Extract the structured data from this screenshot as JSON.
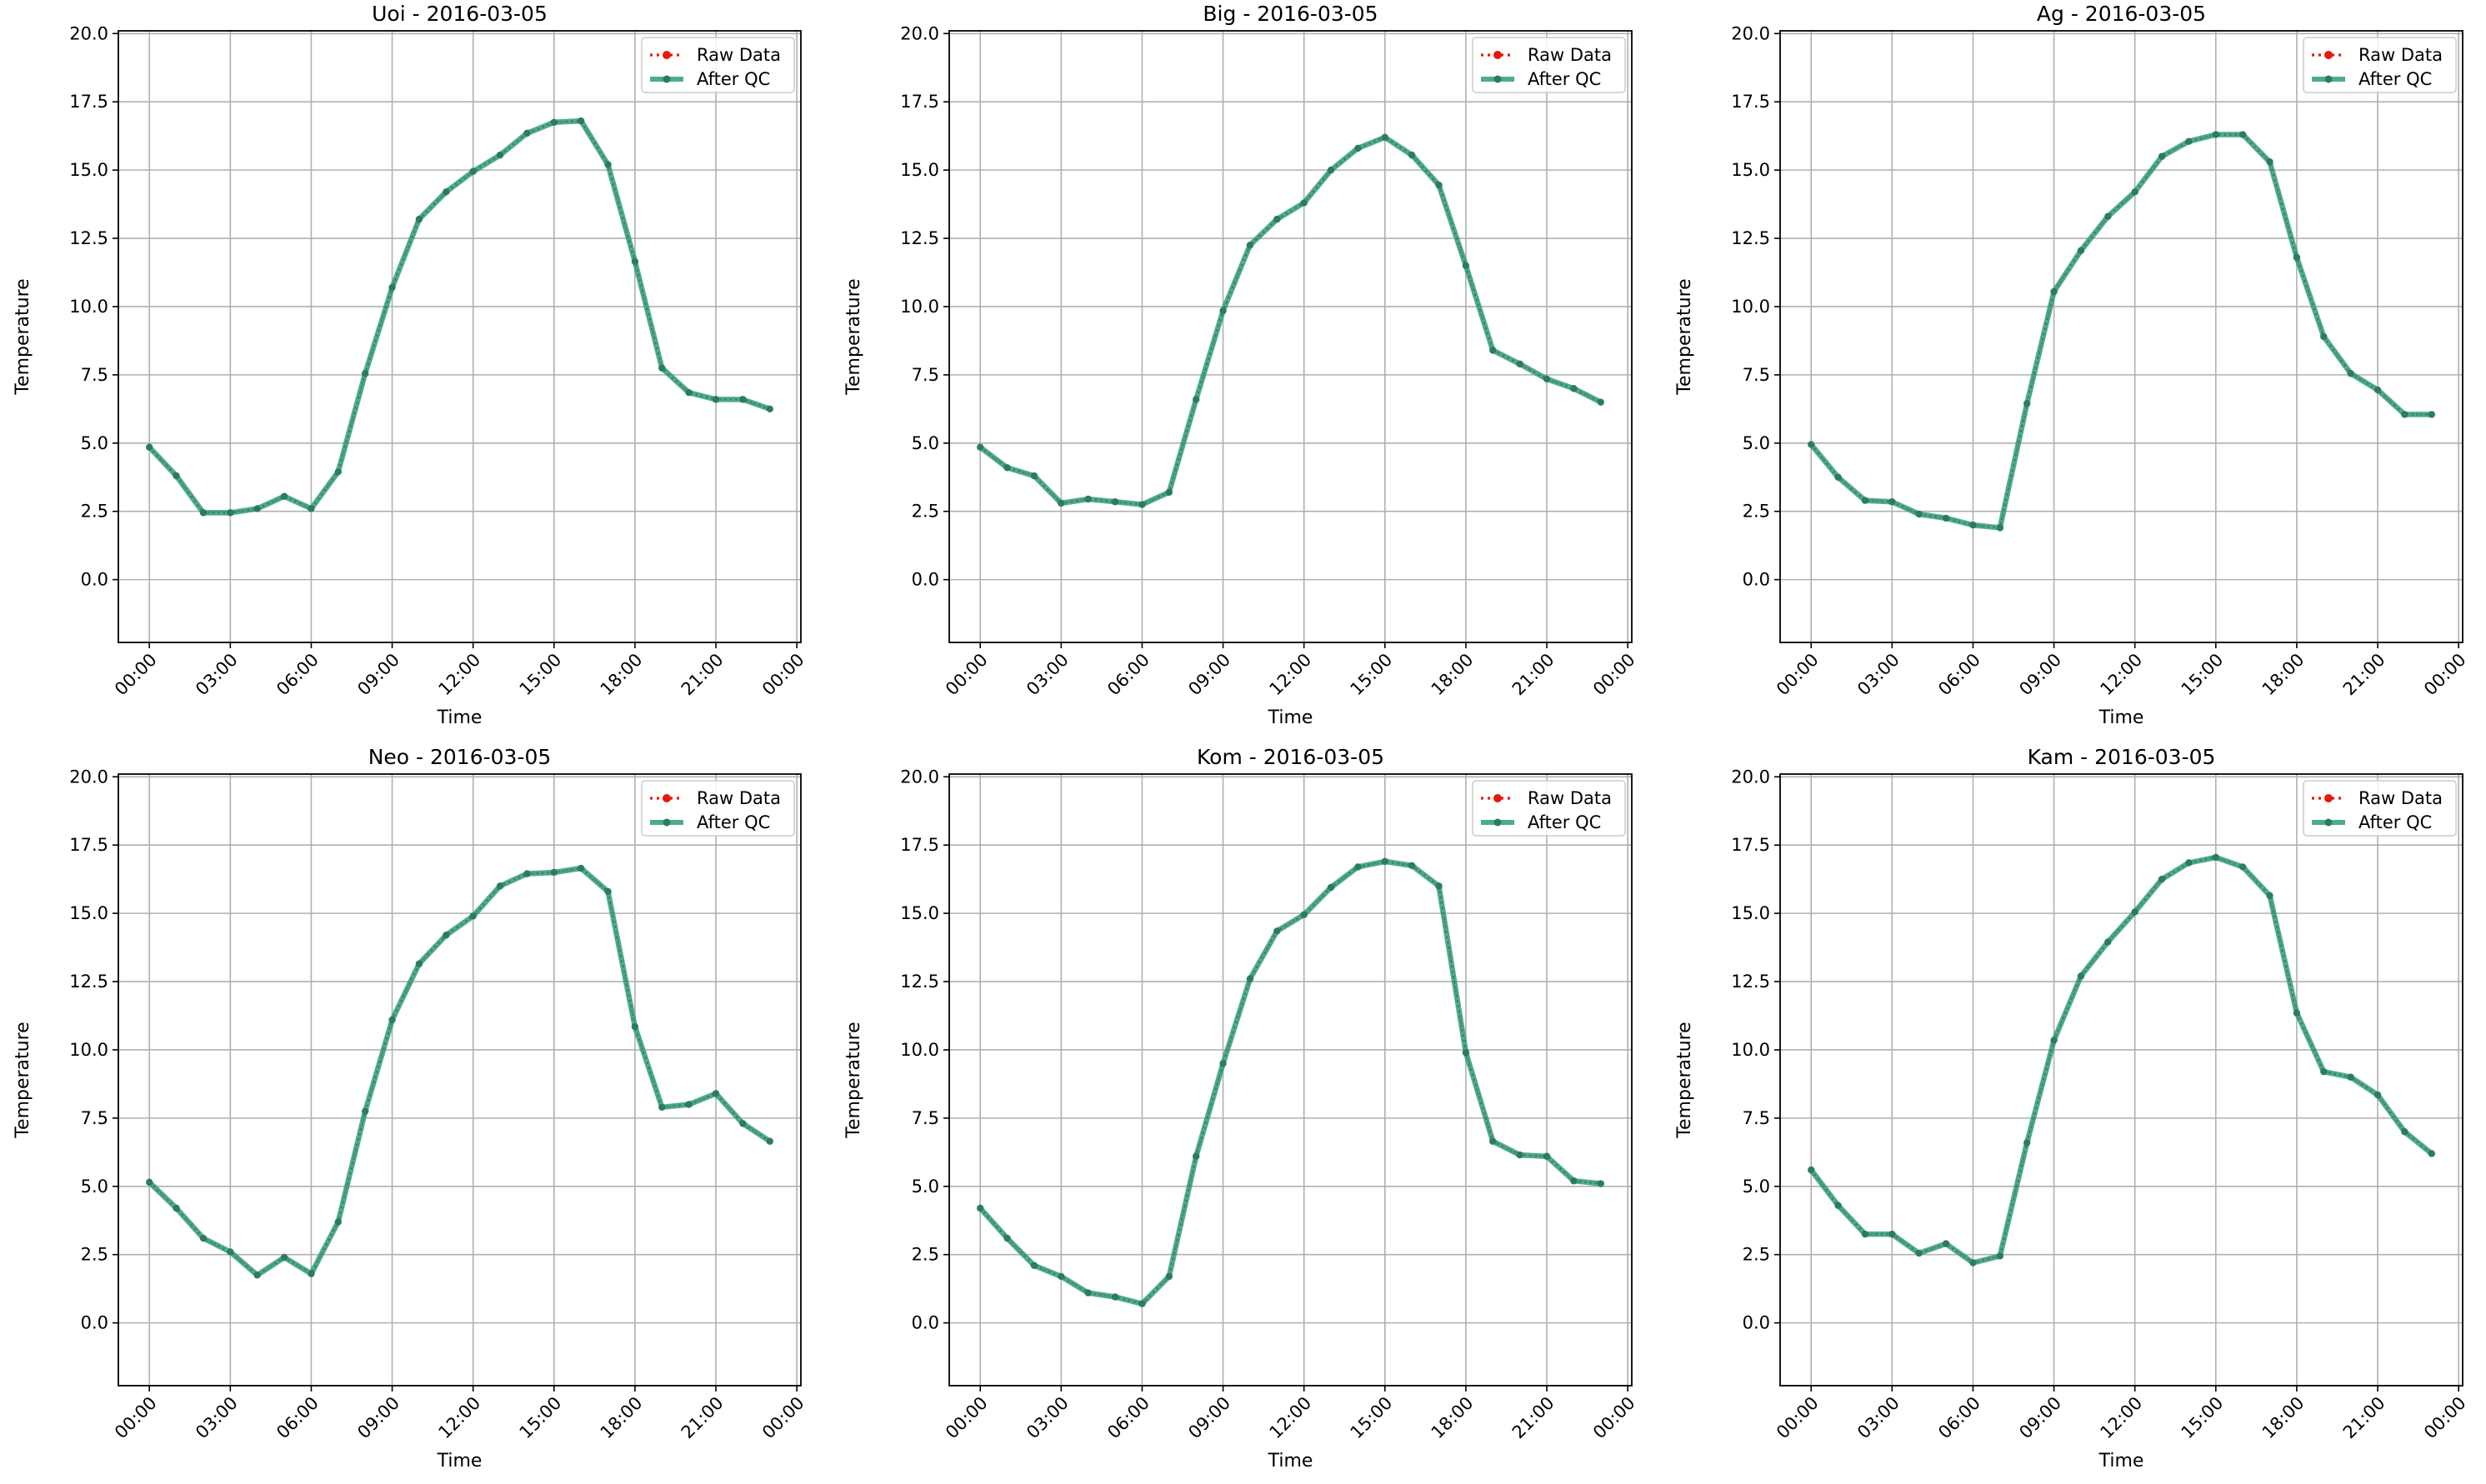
{
  "colors": {
    "raw": "#e8180c",
    "qc": "#2e9d78",
    "qc_point": "#2a7d62",
    "grid": "#b0b0b0"
  },
  "legend_placement": "top-right",
  "grid": true,
  "chart_data": [
    {
      "type": "line",
      "title": "Uoi - 2016-03-05",
      "xlabel": "Time",
      "ylabel": "Temperature",
      "x_hours": [
        0,
        1,
        2,
        3,
        4,
        5,
        6,
        7,
        8,
        9,
        10,
        11,
        12,
        13,
        14,
        15,
        16,
        17,
        18,
        19,
        20,
        21,
        22,
        23
      ],
      "xticks": [
        "00:00",
        "03:00",
        "06:00",
        "09:00",
        "12:00",
        "15:00",
        "18:00",
        "21:00",
        "00:00"
      ],
      "yticks": [
        "0.0",
        "2.5",
        "5.0",
        "7.5",
        "10.0",
        "12.5",
        "15.0",
        "17.5",
        "20.0"
      ],
      "ylim": [
        -2.3,
        20.1
      ],
      "series": [
        {
          "name": "Raw Data",
          "values": [
            4.85,
            3.8,
            2.45,
            2.45,
            2.6,
            3.05,
            2.6,
            3.95,
            7.55,
            10.7,
            13.2,
            14.2,
            14.95,
            15.55,
            16.35,
            16.75,
            16.8,
            15.2,
            11.65,
            7.75,
            6.85,
            6.6,
            6.6,
            6.25
          ]
        },
        {
          "name": "After QC",
          "values": [
            4.85,
            3.8,
            2.45,
            2.45,
            2.6,
            3.05,
            2.6,
            3.95,
            7.55,
            10.7,
            13.2,
            14.2,
            14.95,
            15.55,
            16.35,
            16.75,
            16.8,
            15.2,
            11.65,
            7.75,
            6.85,
            6.6,
            6.6,
            6.25
          ]
        }
      ]
    },
    {
      "type": "line",
      "title": "Big - 2016-03-05",
      "xlabel": "Time",
      "ylabel": "Temperature",
      "x_hours": [
        0,
        1,
        2,
        3,
        4,
        5,
        6,
        7,
        8,
        9,
        10,
        11,
        12,
        13,
        14,
        15,
        16,
        17,
        18,
        19,
        20,
        21,
        22,
        23
      ],
      "xticks": [
        "00:00",
        "03:00",
        "06:00",
        "09:00",
        "12:00",
        "15:00",
        "18:00",
        "21:00",
        "00:00"
      ],
      "yticks": [
        "0.0",
        "2.5",
        "5.0",
        "7.5",
        "10.0",
        "12.5",
        "15.0",
        "17.5",
        "20.0"
      ],
      "ylim": [
        -2.3,
        20.1
      ],
      "series": [
        {
          "name": "Raw Data",
          "values": [
            4.85,
            4.1,
            3.8,
            2.8,
            2.95,
            2.85,
            2.75,
            3.2,
            6.6,
            9.85,
            12.25,
            13.2,
            13.8,
            15.0,
            15.8,
            16.2,
            15.55,
            14.45,
            11.5,
            8.4,
            7.9,
            7.35,
            7.0,
            6.5
          ]
        },
        {
          "name": "After QC",
          "values": [
            4.85,
            4.1,
            3.8,
            2.8,
            2.95,
            2.85,
            2.75,
            3.2,
            6.6,
            9.85,
            12.25,
            13.2,
            13.8,
            15.0,
            15.8,
            16.2,
            15.55,
            14.45,
            11.5,
            8.4,
            7.9,
            7.35,
            7.0,
            6.5
          ]
        }
      ]
    },
    {
      "type": "line",
      "title": "Ag - 2016-03-05",
      "xlabel": "Time",
      "ylabel": "Temperature",
      "x_hours": [
        0,
        1,
        2,
        3,
        4,
        5,
        6,
        7,
        8,
        9,
        10,
        11,
        12,
        13,
        14,
        15,
        16,
        17,
        18,
        19,
        20,
        21,
        22,
        23
      ],
      "xticks": [
        "00:00",
        "03:00",
        "06:00",
        "09:00",
        "12:00",
        "15:00",
        "18:00",
        "21:00",
        "00:00"
      ],
      "yticks": [
        "0.0",
        "2.5",
        "5.0",
        "7.5",
        "10.0",
        "12.5",
        "15.0",
        "17.5",
        "20.0"
      ],
      "ylim": [
        -2.3,
        20.1
      ],
      "series": [
        {
          "name": "Raw Data",
          "values": [
            4.95,
            3.75,
            2.9,
            2.85,
            2.4,
            2.25,
            2.0,
            1.9,
            6.45,
            10.55,
            12.05,
            13.3,
            14.2,
            15.5,
            16.05,
            16.3,
            16.3,
            15.3,
            11.8,
            8.9,
            7.55,
            6.95,
            6.05,
            6.05
          ]
        },
        {
          "name": "After QC",
          "values": [
            4.95,
            3.75,
            2.9,
            2.85,
            2.4,
            2.25,
            2.0,
            1.9,
            6.45,
            10.55,
            12.05,
            13.3,
            14.2,
            15.5,
            16.05,
            16.3,
            16.3,
            15.3,
            11.8,
            8.9,
            7.55,
            6.95,
            6.05,
            6.05
          ]
        }
      ]
    },
    {
      "type": "line",
      "title": "Neo - 2016-03-05",
      "xlabel": "Time",
      "ylabel": "Temperature",
      "x_hours": [
        0,
        1,
        2,
        3,
        4,
        5,
        6,
        7,
        8,
        9,
        10,
        11,
        12,
        13,
        14,
        15,
        16,
        17,
        18,
        19,
        20,
        21,
        22,
        23
      ],
      "xticks": [
        "00:00",
        "03:00",
        "06:00",
        "09:00",
        "12:00",
        "15:00",
        "18:00",
        "21:00",
        "00:00"
      ],
      "yticks": [
        "0.0",
        "2.5",
        "5.0",
        "7.5",
        "10.0",
        "12.5",
        "15.0",
        "17.5",
        "20.0"
      ],
      "ylim": [
        -2.3,
        20.1
      ],
      "series": [
        {
          "name": "Raw Data",
          "values": [
            5.15,
            4.2,
            3.1,
            2.6,
            1.75,
            2.4,
            1.8,
            3.7,
            7.75,
            11.1,
            13.15,
            14.2,
            14.9,
            16.0,
            16.45,
            16.5,
            16.65,
            15.8,
            10.85,
            7.9,
            8.0,
            8.4,
            7.3,
            6.65
          ]
        },
        {
          "name": "After QC",
          "values": [
            5.15,
            4.2,
            3.1,
            2.6,
            1.75,
            2.4,
            1.8,
            3.7,
            7.75,
            11.1,
            13.15,
            14.2,
            14.9,
            16.0,
            16.45,
            16.5,
            16.65,
            15.8,
            10.85,
            7.9,
            8.0,
            8.4,
            7.3,
            6.65
          ]
        }
      ]
    },
    {
      "type": "line",
      "title": "Kom - 2016-03-05",
      "xlabel": "Time",
      "ylabel": "Temperature",
      "x_hours": [
        0,
        1,
        2,
        3,
        4,
        5,
        6,
        7,
        8,
        9,
        10,
        11,
        12,
        13,
        14,
        15,
        16,
        17,
        18,
        19,
        20,
        21,
        22,
        23
      ],
      "xticks": [
        "00:00",
        "03:00",
        "06:00",
        "09:00",
        "12:00",
        "15:00",
        "18:00",
        "21:00",
        "00:00"
      ],
      "yticks": [
        "0.0",
        "2.5",
        "5.0",
        "7.5",
        "10.0",
        "12.5",
        "15.0",
        "17.5",
        "20.0"
      ],
      "ylim": [
        -2.3,
        20.1
      ],
      "series": [
        {
          "name": "Raw Data",
          "values": [
            4.2,
            3.1,
            2.1,
            1.7,
            1.1,
            0.95,
            0.7,
            1.7,
            6.1,
            9.5,
            12.6,
            14.35,
            14.95,
            15.95,
            16.7,
            16.9,
            16.75,
            16.0,
            9.9,
            6.65,
            6.15,
            6.1,
            5.2,
            5.1
          ]
        },
        {
          "name": "After QC",
          "values": [
            4.2,
            3.1,
            2.1,
            1.7,
            1.1,
            0.95,
            0.7,
            1.7,
            6.1,
            9.5,
            12.6,
            14.35,
            14.95,
            15.95,
            16.7,
            16.9,
            16.75,
            16.0,
            9.9,
            6.65,
            6.15,
            6.1,
            5.2,
            5.1
          ]
        }
      ]
    },
    {
      "type": "line",
      "title": "Kam - 2016-03-05",
      "xlabel": "Time",
      "ylabel": "Temperature",
      "x_hours": [
        0,
        1,
        2,
        3,
        4,
        5,
        6,
        7,
        8,
        9,
        10,
        11,
        12,
        13,
        14,
        15,
        16,
        17,
        18,
        19,
        20,
        21,
        22,
        23
      ],
      "xticks": [
        "00:00",
        "03:00",
        "06:00",
        "09:00",
        "12:00",
        "15:00",
        "18:00",
        "21:00",
        "00:00"
      ],
      "yticks": [
        "0.0",
        "2.5",
        "5.0",
        "7.5",
        "10.0",
        "12.5",
        "15.0",
        "17.5",
        "20.0"
      ],
      "ylim": [
        -2.3,
        20.1
      ],
      "series": [
        {
          "name": "Raw Data",
          "values": [
            5.6,
            4.3,
            3.25,
            3.25,
            2.55,
            2.9,
            2.2,
            2.45,
            6.6,
            10.35,
            12.7,
            13.95,
            15.05,
            16.25,
            16.85,
            17.05,
            16.7,
            15.65,
            11.35,
            9.2,
            9.0,
            8.35,
            7.0,
            6.2
          ]
        },
        {
          "name": "After QC",
          "values": [
            5.6,
            4.3,
            3.25,
            3.25,
            2.55,
            2.9,
            2.2,
            2.45,
            6.6,
            10.35,
            12.7,
            13.95,
            15.05,
            16.25,
            16.85,
            17.05,
            16.7,
            15.65,
            11.35,
            9.2,
            9.0,
            8.35,
            7.0,
            6.2
          ]
        }
      ]
    }
  ]
}
